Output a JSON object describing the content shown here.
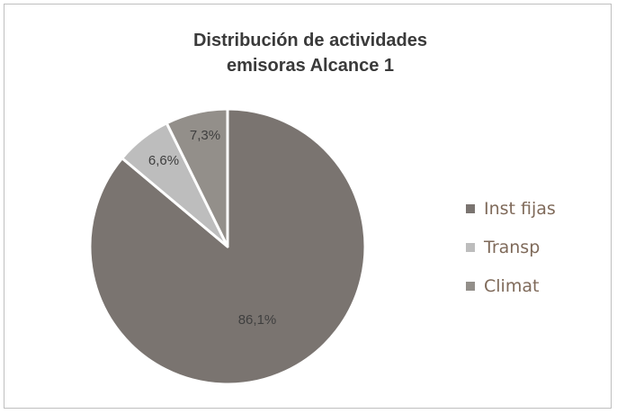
{
  "chart_data": {
    "type": "pie",
    "title_lines": [
      "Distribución de actividades",
      "emisoras Alcance 1"
    ],
    "categories": [
      "Inst fijas",
      "Transp",
      "Climat"
    ],
    "values": [
      86.1,
      6.6,
      7.3
    ],
    "data_labels": [
      "86,1%",
      "6,6%",
      "7,3%"
    ],
    "colors": [
      "#7a7470",
      "#bdbdbd",
      "#938f8a"
    ],
    "legend_position": "right"
  }
}
